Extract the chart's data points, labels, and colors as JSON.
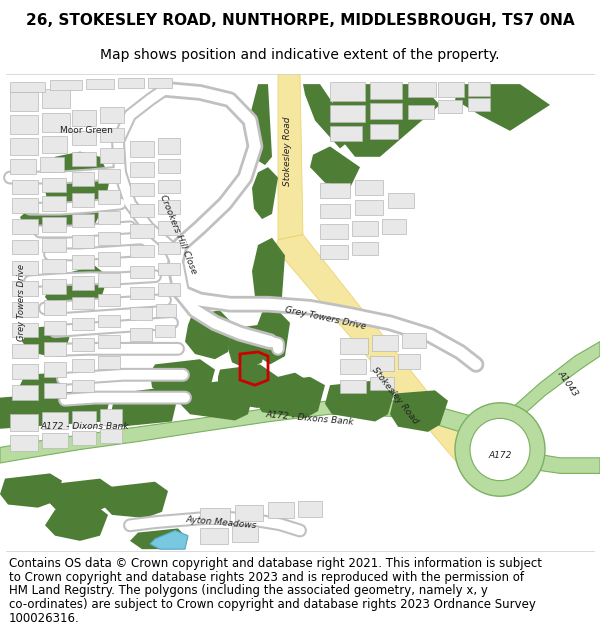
{
  "title_line1": "26, STOKESLEY ROAD, NUNTHORPE, MIDDLESBROUGH, TS7 0NA",
  "title_line2": "Map shows position and indicative extent of the property.",
  "footer_text": "Contains OS data © Crown copyright and database right 2021. This information is subject to Crown copyright and database rights 2023 and is reproduced with the permission of HM Land Registry. The polygons (including the associated geometry, namely x, y co-ordinates) are subject to Crown copyright and database rights 2023 Ordnance Survey 100026316.",
  "bg_color": "#ffffff",
  "road_yellow": "#f5e6a0",
  "road_yellow_edge": "#e8d060",
  "green_dark": "#4e7d35",
  "green_light": "#b8dba0",
  "green_light_edge": "#7ab060",
  "building_fill": "#e8e8e8",
  "building_edge": "#b8b8b8",
  "plot_red": "#cc0000",
  "water_blue": "#78c8e0",
  "map_bg": "#ffffff",
  "title_fontsize": 11,
  "subtitle_fontsize": 10,
  "footer_fontsize": 8.5,
  "label_fontsize": 6.5
}
